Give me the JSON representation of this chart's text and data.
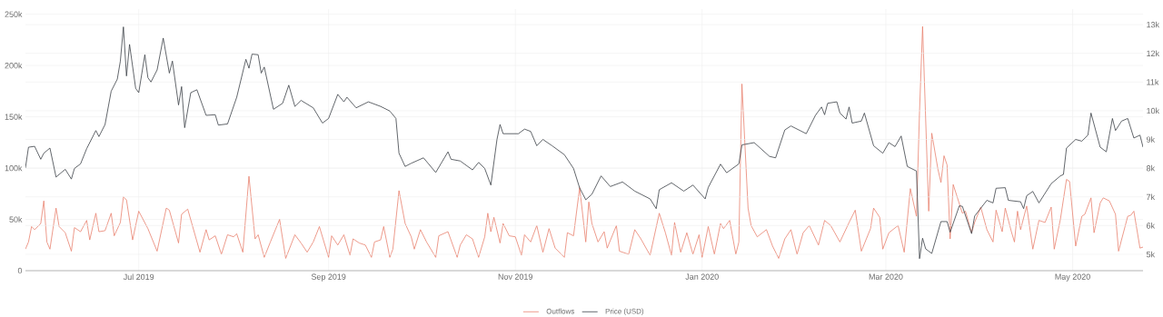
{
  "chart_data": {
    "type": "line",
    "xlim": [
      "2019-05-25",
      "2020-05-24"
    ],
    "xticks": [
      {
        "value": "2019-07-01",
        "label": "Jul 2019"
      },
      {
        "value": "2019-09-01",
        "label": "Sep 2019"
      },
      {
        "value": "2019-11-01",
        "label": "Nov 2019"
      },
      {
        "value": "2020-01-01",
        "label": "Jan 2020"
      },
      {
        "value": "2020-03-01",
        "label": "Mar 2020"
      },
      {
        "value": "2020-05-01",
        "label": "May 2020"
      }
    ],
    "ylim": [
      0,
      255000
    ],
    "yticks": [
      0,
      {
        "value": 50000,
        "label": "50k"
      },
      {
        "value": 100000,
        "label": "100k"
      },
      {
        "value": 150000,
        "label": "150k"
      },
      {
        "value": 200000,
        "label": "200k"
      },
      {
        "value": 250000,
        "label": "250k"
      }
    ],
    "y2lim": [
      4430,
      13540
    ],
    "y2ticks": [
      {
        "value": 5000,
        "label": "5k"
      },
      {
        "value": 6000,
        "label": "6k"
      },
      {
        "value": 7000,
        "label": "7k"
      },
      {
        "value": 8000,
        "label": "8k"
      },
      {
        "value": 9000,
        "label": "9k"
      },
      {
        "value": 10000,
        "label": "10k"
      },
      {
        "value": 11000,
        "label": "11k"
      },
      {
        "value": 12000,
        "label": "12k"
      },
      {
        "value": 13000,
        "label": "13k"
      }
    ],
    "grid": true,
    "legend": "bottom",
    "series": [
      {
        "name": "Outflows",
        "color": "#e8826f",
        "x": [
          "2019-05-25",
          "2019-05-26",
          "2019-05-27",
          "2019-05-28",
          "2019-05-30",
          "2019-05-31",
          "2019-06-01",
          "2019-06-02",
          "2019-06-04",
          "2019-06-05",
          "2019-06-07",
          "2019-06-09",
          "2019-06-10",
          "2019-06-12",
          "2019-06-14",
          "2019-06-15",
          "2019-06-17",
          "2019-06-18",
          "2019-06-20",
          "2019-06-22",
          "2019-06-23",
          "2019-06-25",
          "2019-06-26",
          "2019-06-27",
          "2019-06-29",
          "2019-07-01",
          "2019-07-04",
          "2019-07-07",
          "2019-07-10",
          "2019-07-11",
          "2019-07-14",
          "2019-07-15",
          "2019-07-17",
          "2019-07-21",
          "2019-07-23",
          "2019-07-24",
          "2019-07-26",
          "2019-07-28",
          "2019-07-30",
          "2019-08-01",
          "2019-08-02",
          "2019-08-04",
          "2019-08-06",
          "2019-08-08",
          "2019-08-09",
          "2019-08-11",
          "2019-08-13",
          "2019-08-16",
          "2019-08-18",
          "2019-08-21",
          "2019-08-23",
          "2019-08-25",
          "2019-08-27",
          "2019-08-29",
          "2019-09-01",
          "2019-09-02",
          "2019-09-04",
          "2019-09-06",
          "2019-09-08",
          "2019-09-09",
          "2019-09-11",
          "2019-09-13",
          "2019-09-15",
          "2019-09-16",
          "2019-09-18",
          "2019-09-19",
          "2019-09-21",
          "2019-09-22",
          "2019-09-24",
          "2019-09-26",
          "2019-09-28",
          "2019-09-29",
          "2019-10-01",
          "2019-10-03",
          "2019-10-06",
          "2019-10-07",
          "2019-10-10",
          "2019-10-13",
          "2019-10-14",
          "2019-10-16",
          "2019-10-18",
          "2019-10-20",
          "2019-10-22",
          "2019-10-23",
          "2019-10-24",
          "2019-10-25",
          "2019-10-27",
          "2019-10-28",
          "2019-10-30",
          "2019-11-01",
          "2019-11-03",
          "2019-11-04",
          "2019-11-06",
          "2019-11-08",
          "2019-11-10",
          "2019-11-12",
          "2019-11-14",
          "2019-11-17",
          "2019-11-18",
          "2019-11-20",
          "2019-11-22",
          "2019-11-24",
          "2019-11-25",
          "2019-11-26",
          "2019-11-28",
          "2019-11-30",
          "2019-12-01",
          "2019-12-04",
          "2019-12-05",
          "2019-12-08",
          "2019-12-10",
          "2019-12-12",
          "2019-12-15",
          "2019-12-18",
          "2019-12-20",
          "2019-12-22",
          "2019-12-23",
          "2019-12-25",
          "2019-12-27",
          "2019-12-29",
          "2019-12-31",
          "2020-01-01",
          "2020-01-03",
          "2020-01-05",
          "2020-01-07",
          "2020-01-08",
          "2020-01-10",
          "2020-01-12",
          "2020-01-13",
          "2020-01-14",
          "2020-01-16",
          "2020-01-17",
          "2020-01-19",
          "2020-01-22",
          "2020-01-24",
          "2020-01-26",
          "2020-01-28",
          "2020-01-30",
          "2020-02-01",
          "2020-02-03",
          "2020-02-05",
          "2020-02-08",
          "2020-02-10",
          "2020-02-12",
          "2020-02-15",
          "2020-02-18",
          "2020-02-20",
          "2020-02-22",
          "2020-02-25",
          "2020-02-26",
          "2020-02-28",
          "2020-02-29",
          "2020-03-02",
          "2020-03-05",
          "2020-03-07",
          "2020-03-09",
          "2020-03-11",
          "2020-03-12",
          "2020-03-13",
          "2020-03-15",
          "2020-03-16",
          "2020-03-18",
          "2020-03-19",
          "2020-03-20",
          "2020-03-21",
          "2020-03-22",
          "2020-03-23",
          "2020-03-26",
          "2020-03-27",
          "2020-03-29",
          "2020-03-30",
          "2020-04-01",
          "2020-04-03",
          "2020-04-05",
          "2020-04-06",
          "2020-04-08",
          "2020-04-09",
          "2020-04-11",
          "2020-04-12",
          "2020-04-13",
          "2020-04-14",
          "2020-04-16",
          "2020-04-18",
          "2020-04-20",
          "2020-04-22",
          "2020-04-24",
          "2020-04-25",
          "2020-04-27",
          "2020-04-29",
          "2020-04-30",
          "2020-05-02",
          "2020-05-04",
          "2020-05-05",
          "2020-05-07",
          "2020-05-08",
          "2020-05-10",
          "2020-05-11",
          "2020-05-13",
          "2020-05-15",
          "2020-05-16",
          "2020-05-19",
          "2020-05-20",
          "2020-05-21",
          "2020-05-23",
          "2020-05-24"
        ],
        "values": [
          21000,
          28000,
          43000,
          40000,
          46000,
          68000,
          28000,
          21000,
          61000,
          43000,
          37000,
          19000,
          42000,
          38000,
          49000,
          30000,
          56000,
          38000,
          39000,
          56000,
          34000,
          47000,
          72000,
          69000,
          30000,
          58000,
          41000,
          19000,
          61000,
          59000,
          27000,
          55000,
          60000,
          18000,
          40000,
          30000,
          34000,
          16000,
          35000,
          33000,
          36000,
          18000,
          92000,
          31000,
          35000,
          13000,
          28000,
          50000,
          12000,
          35000,
          27000,
          18000,
          28000,
          43000,
          13000,
          34000,
          25000,
          35000,
          15000,
          31000,
          27000,
          25000,
          13000,
          28000,
          30000,
          43000,
          13000,
          21000,
          78000,
          46000,
          33000,
          21000,
          40000,
          28000,
          13000,
          34000,
          38000,
          13000,
          25000,
          35000,
          31000,
          13000,
          33000,
          56000,
          38000,
          52000,
          27000,
          46000,
          34000,
          33000,
          15000,
          35000,
          28000,
          44000,
          18000,
          41000,
          22000,
          13000,
          37000,
          34000,
          81000,
          28000,
          67000,
          46000,
          28000,
          38000,
          22000,
          44000,
          19000,
          16000,
          40000,
          31000,
          15000,
          56000,
          37000,
          15000,
          47000,
          18000,
          37000,
          16000,
          35000,
          13000,
          43000,
          16000,
          46000,
          41000,
          49000,
          16000,
          28000,
          182000,
          61000,
          44000,
          33000,
          40000,
          24000,
          12000,
          31000,
          40000,
          16000,
          37000,
          44000,
          25000,
          49000,
          44000,
          28000,
          47000,
          59000,
          19000,
          41000,
          61000,
          52000,
          21000,
          37000,
          44000,
          18000,
          80000,
          53000,
          155000,
          238000,
          58000,
          134000,
          99000,
          86000,
          112000,
          103000,
          31000,
          84000,
          56000,
          58000,
          37000,
          47000,
          62000,
          40000,
          28000,
          59000,
          38000,
          61000,
          38000,
          28000,
          58000,
          40000,
          63000,
          21000,
          49000,
          47000,
          62000,
          21000,
          50000,
          89000,
          87000,
          24000,
          53000,
          55000,
          71000,
          37000,
          66000,
          71000,
          68000,
          55000,
          19000,
          53000,
          54000,
          58000,
          22000,
          23000
        ]
      },
      {
        "name": "Price (USD)",
        "color": "#3b4046",
        "axis": "y2",
        "x": [
          "2019-05-25",
          "2019-05-26",
          "2019-05-28",
          "2019-05-30",
          "2019-05-31",
          "2019-06-02",
          "2019-06-04",
          "2019-06-07",
          "2019-06-09",
          "2019-06-10",
          "2019-06-12",
          "2019-06-14",
          "2019-06-17",
          "2019-06-18",
          "2019-06-20",
          "2019-06-22",
          "2019-06-24",
          "2019-06-25",
          "2019-06-26",
          "2019-06-27",
          "2019-06-28",
          "2019-06-30",
          "2019-07-01",
          "2019-07-03",
          "2019-07-04",
          "2019-07-05",
          "2019-07-07",
          "2019-07-09",
          "2019-07-11",
          "2019-07-12",
          "2019-07-14",
          "2019-07-15",
          "2019-07-16",
          "2019-07-18",
          "2019-07-20",
          "2019-07-23",
          "2019-07-26",
          "2019-07-27",
          "2019-07-30",
          "2019-08-02",
          "2019-08-05",
          "2019-08-06",
          "2019-08-07",
          "2019-08-09",
          "2019-08-10",
          "2019-08-11",
          "2019-08-14",
          "2019-08-17",
          "2019-08-19",
          "2019-08-21",
          "2019-08-23",
          "2019-08-27",
          "2019-08-30",
          "2019-09-01",
          "2019-09-04",
          "2019-09-06",
          "2019-09-07",
          "2019-09-10",
          "2019-09-14",
          "2019-09-18",
          "2019-09-21",
          "2019-09-23",
          "2019-09-24",
          "2019-09-26",
          "2019-09-28",
          "2019-10-02",
          "2019-10-06",
          "2019-10-10",
          "2019-10-11",
          "2019-10-14",
          "2019-10-18",
          "2019-10-20",
          "2019-10-22",
          "2019-10-24",
          "2019-10-26",
          "2019-10-27",
          "2019-10-28",
          "2019-11-02",
          "2019-11-04",
          "2019-11-06",
          "2019-11-08",
          "2019-11-10",
          "2019-11-13",
          "2019-11-17",
          "2019-11-20",
          "2019-11-22",
          "2019-11-24",
          "2019-11-26",
          "2019-11-29",
          "2019-12-02",
          "2019-12-06",
          "2019-12-10",
          "2019-12-15",
          "2019-12-17",
          "2019-12-18",
          "2019-12-22",
          "2019-12-26",
          "2019-12-29",
          "2020-01-02",
          "2020-01-03",
          "2020-01-07",
          "2020-01-09",
          "2020-01-13",
          "2020-01-14",
          "2020-01-18",
          "2020-01-23",
          "2020-01-25",
          "2020-01-28",
          "2020-01-30",
          "2020-02-04",
          "2020-02-07",
          "2020-02-09",
          "2020-02-10",
          "2020-02-11",
          "2020-02-14",
          "2020-02-15",
          "2020-02-17",
          "2020-02-18",
          "2020-02-19",
          "2020-02-22",
          "2020-02-23",
          "2020-02-26",
          "2020-02-29",
          "2020-03-02",
          "2020-03-04",
          "2020-03-06",
          "2020-03-08",
          "2020-03-11",
          "2020-03-12",
          "2020-03-13",
          "2020-03-14",
          "2020-03-16",
          "2020-03-19",
          "2020-03-21",
          "2020-03-22",
          "2020-03-25",
          "2020-03-26",
          "2020-03-29",
          "2020-03-30",
          "2020-04-03",
          "2020-04-05",
          "2020-04-06",
          "2020-04-09",
          "2020-04-10",
          "2020-04-14",
          "2020-04-15",
          "2020-04-16",
          "2020-04-18",
          "2020-04-20",
          "2020-04-24",
          "2020-04-27",
          "2020-04-28",
          "2020-04-29",
          "2020-05-02",
          "2020-05-04",
          "2020-05-06",
          "2020-05-07",
          "2020-05-10",
          "2020-05-12",
          "2020-05-14",
          "2020-05-15",
          "2020-05-17",
          "2020-05-19",
          "2020-05-21",
          "2020-05-23",
          "2020-05-24"
        ],
        "values": [
          8010,
          8730,
          8760,
          8310,
          8520,
          8700,
          7690,
          7960,
          7620,
          7990,
          8150,
          8680,
          9310,
          9100,
          9520,
          10680,
          11100,
          11730,
          12920,
          11210,
          12310,
          10780,
          10630,
          11950,
          11150,
          11000,
          11420,
          12530,
          11310,
          11730,
          10200,
          10840,
          9410,
          10630,
          10730,
          9840,
          9860,
          9500,
          9540,
          10470,
          11790,
          11480,
          11970,
          11950,
          11310,
          11520,
          10050,
          10260,
          10890,
          10150,
          10360,
          10100,
          9570,
          9730,
          10570,
          10310,
          10470,
          10100,
          10310,
          10150,
          9990,
          9730,
          8520,
          8060,
          8170,
          8360,
          7850,
          8570,
          8310,
          8250,
          7940,
          8200,
          7990,
          7410,
          9000,
          9520,
          9200,
          9200,
          9360,
          9280,
          8780,
          9000,
          8780,
          8470,
          7990,
          7310,
          6900,
          7090,
          7730,
          7360,
          7520,
          7200,
          6930,
          6590,
          7250,
          7490,
          7200,
          7410,
          6930,
          7330,
          8140,
          7840,
          8150,
          8810,
          8890,
          8410,
          8360,
          9330,
          9470,
          9200,
          9840,
          10130,
          9860,
          10260,
          10310,
          9920,
          9710,
          10130,
          9570,
          9640,
          9920,
          8780,
          8520,
          8890,
          8750,
          9120,
          8060,
          7900,
          4850,
          5560,
          5190,
          5030,
          6140,
          6140,
          5770,
          6690,
          6670,
          5720,
          6330,
          6880,
          6790,
          7300,
          7320,
          6880,
          6830,
          6590,
          7040,
          7190,
          6790,
          7460,
          7730,
          7780,
          8700,
          9000,
          8940,
          9150,
          9920,
          8730,
          8570,
          9730,
          9310,
          9640,
          9730,
          9050,
          9150,
          8730
        ]
      }
    ]
  }
}
